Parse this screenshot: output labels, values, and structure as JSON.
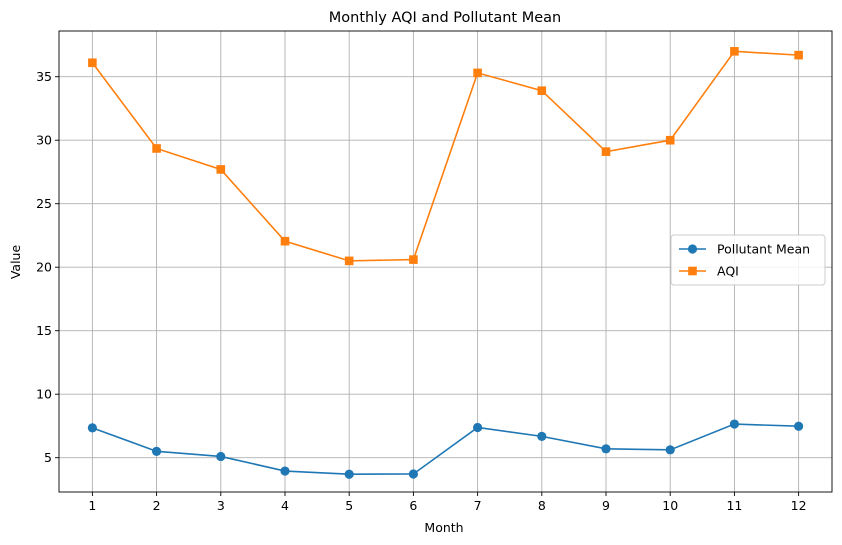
{
  "chart_data": {
    "type": "line",
    "title": "Monthly AQI and Pollutant Mean",
    "xlabel": "Month",
    "ylabel": "Value",
    "x": [
      1,
      2,
      3,
      4,
      5,
      6,
      7,
      8,
      9,
      10,
      11,
      12
    ],
    "x_tick_labels": [
      "1",
      "2",
      "3",
      "4",
      "5",
      "6",
      "7",
      "8",
      "9",
      "10",
      "11",
      "12"
    ],
    "y_ticks": [
      5,
      10,
      15,
      20,
      25,
      30,
      35
    ],
    "y_tick_labels": [
      "5",
      "10",
      "15",
      "20",
      "25",
      "30",
      "35"
    ],
    "xlim": [
      0.48,
      12.52
    ],
    "ylim": [
      2.3,
      38.6
    ],
    "grid": true,
    "legend_position": "center-right",
    "series": [
      {
        "name": "Pollutant Mean",
        "color": "#1f77b4",
        "marker": "circle",
        "values": [
          7.35,
          5.5,
          5.1,
          3.95,
          3.7,
          3.72,
          7.38,
          6.68,
          5.7,
          5.62,
          7.65,
          7.48
        ]
      },
      {
        "name": "AQI",
        "color": "#ff7f0e",
        "marker": "square",
        "values": [
          36.1,
          29.35,
          27.7,
          22.05,
          20.5,
          20.6,
          35.3,
          33.9,
          29.1,
          30.0,
          37.0,
          36.7
        ]
      }
    ]
  }
}
